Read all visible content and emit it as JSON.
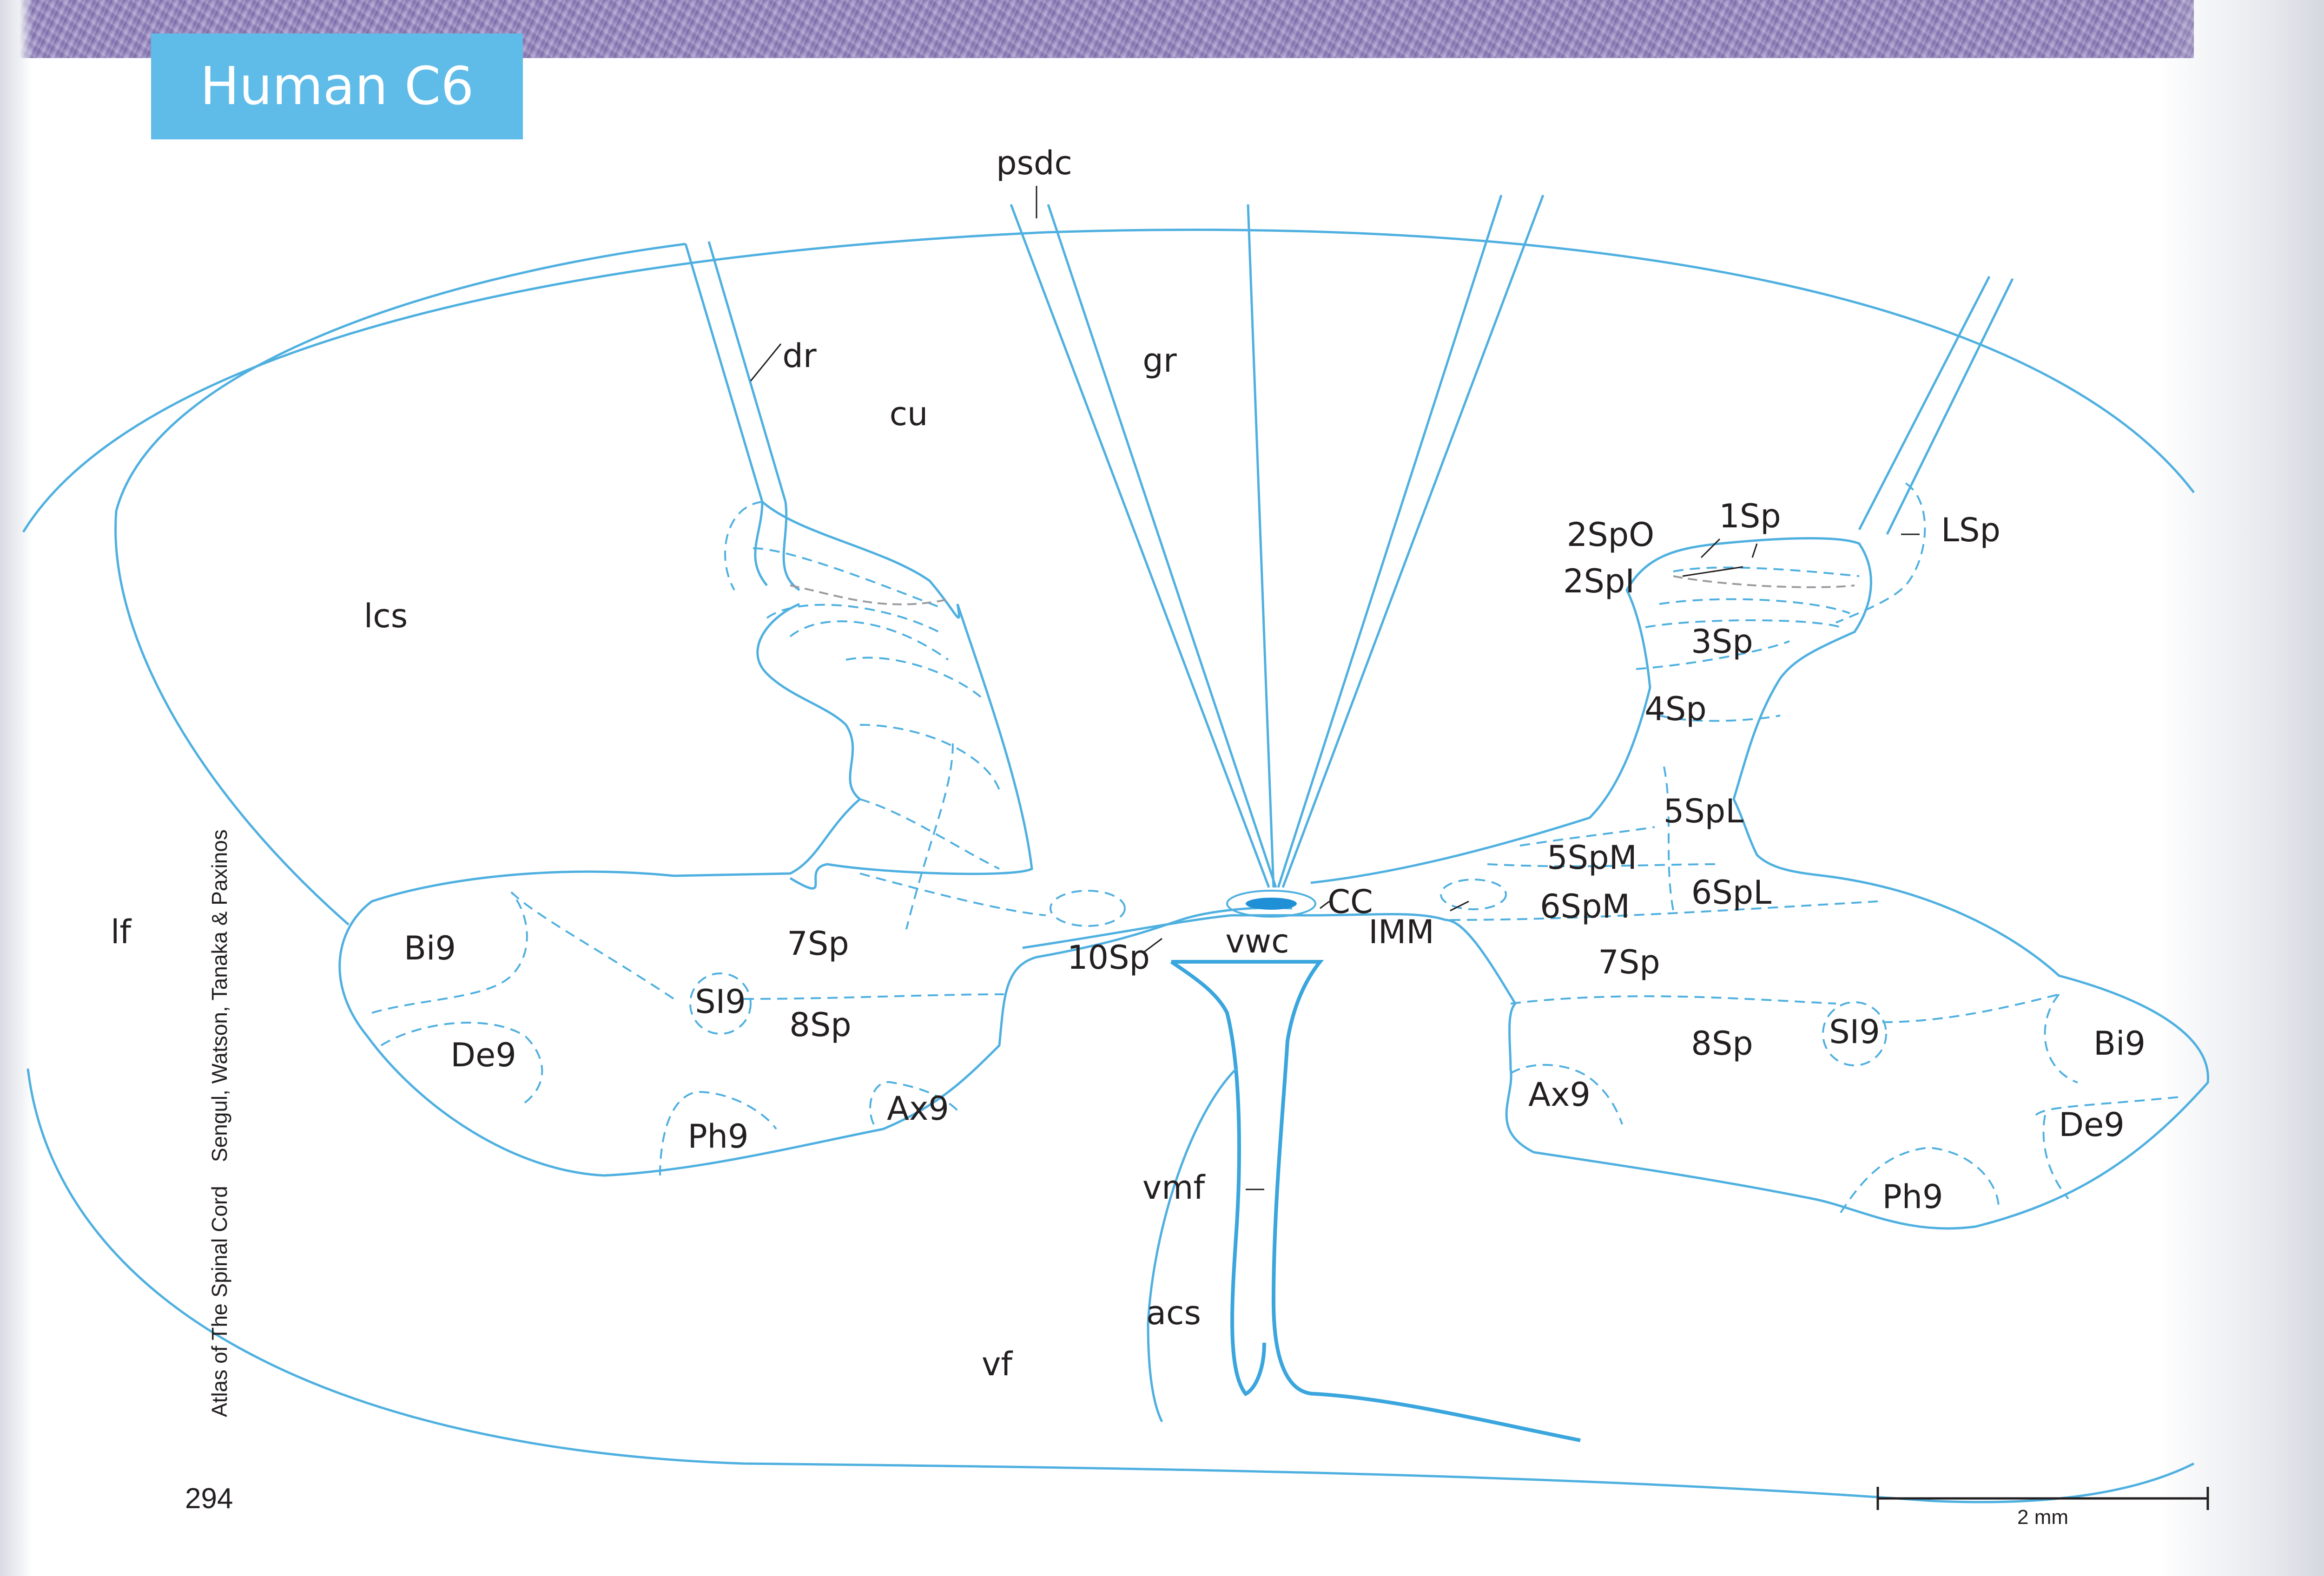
{
  "header": {
    "title": "Human C6"
  },
  "footer": {
    "spine_book": "Atlas of The Spinal Cord",
    "spine_authors": "Sengul, Watson, Tanaka & Paxinos",
    "page_number": "294"
  },
  "scale_bar": {
    "label": "2 mm"
  },
  "labels": {
    "psdc": "psdc",
    "dr": "dr",
    "cu": "cu",
    "gr": "gr",
    "lcs": "lcs",
    "lf": "lf",
    "Sp1": "1Sp",
    "LSp": "LSp",
    "SpO2": "2SpO",
    "SpI2": "2SpI",
    "Sp3": "3Sp",
    "Sp4": "4Sp",
    "SpL5": "5SpL",
    "SpM5": "5SpM",
    "SpM6": "6SpM",
    "SpL6": "6SpL",
    "CC": "CC",
    "IMM": "IMM",
    "vwc": "vwc",
    "Sp10": "10Sp",
    "Sp7_left": "7Sp",
    "Sp8_left": "8Sp",
    "Bi9_left": "Bi9",
    "SI9_left": "SI9",
    "De9_left": "De9",
    "Ph9_left": "Ph9",
    "Ax9_left": "Ax9",
    "Sp7_right": "7Sp",
    "Sp8_right": "8Sp",
    "Bi9_right": "Bi9",
    "SI9_right": "SI9",
    "De9_right": "De9",
    "Ph9_right": "Ph9",
    "Ax9_right": "Ax9",
    "vmf": "vmf",
    "acs": "acs",
    "vf": "vf"
  },
  "colors": {
    "outline": "#4fb0e0",
    "title_box": "#5fbce8",
    "central_canal": "#1f8fd6"
  }
}
